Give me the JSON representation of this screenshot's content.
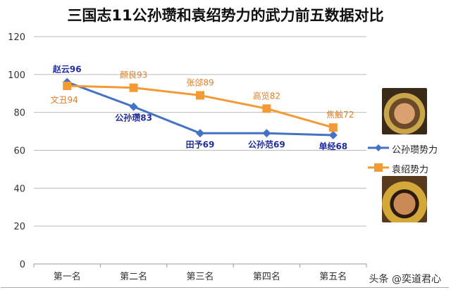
{
  "chart_data": {
    "type": "line",
    "title": "三国志11公孙瓒和袁绍势力的武力前五数据对比",
    "categories": [
      "第一名",
      "第二名",
      "第三名",
      "第四名",
      "第五名"
    ],
    "ylim": [
      0,
      120
    ],
    "yticks": [
      "0",
      "20",
      "40",
      "60",
      "80",
      "100",
      "120"
    ],
    "grid": true,
    "legend": "right",
    "series": [
      {
        "name": "公孙瓒势力",
        "color": "#4472C4",
        "marker": "diamond",
        "values": [
          96,
          83,
          69,
          69,
          68
        ],
        "labels": [
          "赵云96",
          "公孙瓒83",
          "田予69",
          "公孙范69",
          "单经68"
        ],
        "label_color": "#1F2D9E"
      },
      {
        "name": "袁绍势力",
        "color": "#F39A35",
        "marker": "square",
        "values": [
          94,
          93,
          89,
          82,
          72
        ],
        "labels": [
          "文丑94",
          "颜良93",
          "张郃89",
          "高览82",
          "焦触72"
        ],
        "label_color": "#E07F2E"
      }
    ]
  },
  "watermark": "头条 @奕道君心"
}
